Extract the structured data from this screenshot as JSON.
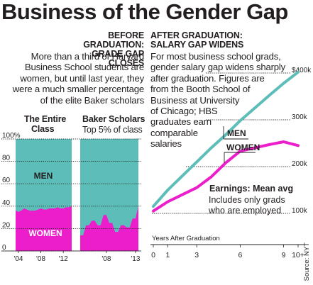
{
  "title": "Business of the Gender Gap",
  "left": {
    "head_line1": "BEFORE GRADUATION:",
    "head_line2": "GRADE GAP CLOSES",
    "text_lines": [
      "More than a third of Harvard",
      "Business School students are",
      "women, but until last year, they",
      "were a much smaller percentage",
      "of the elite Baker scholars"
    ],
    "panel1_title_line1": "The Entire",
    "panel1_title_line2": "Class",
    "panel2_title": "Baker Scholars",
    "panel2_sub": "Top 5% of class"
  },
  "right": {
    "head_line1": "AFTER GRADUATION:",
    "head_line2": "SALARY GAP WIDENS",
    "text_lines": [
      "For most business school grads,",
      "gender salary gap widens sharply",
      "after graduation. Figures are",
      "from the Booth School of",
      "Business at University",
      "of Chicago; HBS",
      "graduates earn",
      "comparable",
      "salaries"
    ],
    "earnings_title": "Earnings: Mean avg",
    "earnings_note": [
      "Includes only grads",
      "who are employed"
    ]
  },
  "source": "Source: NYT",
  "colors": {
    "men": "#5dbdb8",
    "women": "#ec1ecb",
    "text": "#231f20"
  },
  "chart_data": [
    {
      "type": "area",
      "title": "The Entire Class",
      "ylim": [
        0,
        100
      ],
      "y_ticks": [
        "0",
        "20",
        "40",
        "60",
        "80",
        "100%"
      ],
      "y_tick_values": [
        0,
        20,
        40,
        60,
        80,
        100
      ],
      "x_ticks": [
        "'04",
        "'08",
        "'12"
      ],
      "x_tick_years": [
        2004,
        2008,
        2012
      ],
      "x": [
        2003.5,
        2004,
        2004.5,
        2005,
        2005.5,
        2006,
        2006.5,
        2007,
        2007.5,
        2008,
        2008.5,
        2009,
        2009.5,
        2010,
        2010.5,
        2011,
        2011.5,
        2012,
        2012.5,
        2013,
        2013.5
      ],
      "series": [
        {
          "name": "WOMEN",
          "values": [
            36,
            35,
            36,
            38,
            37,
            36,
            36,
            36,
            37,
            38,
            37,
            37,
            38,
            38,
            38,
            39,
            38,
            38,
            39,
            39,
            40
          ]
        },
        {
          "name": "MEN",
          "stacked_to": 100
        }
      ]
    },
    {
      "type": "area",
      "title": "Baker Scholars",
      "subtitle": "Top 5% of class",
      "ylim": [
        0,
        100
      ],
      "x_ticks": [
        "'08",
        "'13"
      ],
      "x_tick_years": [
        2008,
        2013
      ],
      "x": [
        2003.5,
        2004,
        2004.5,
        2005,
        2005.5,
        2006,
        2006.5,
        2007,
        2007.5,
        2008,
        2008.5,
        2009,
        2009.5,
        2010,
        2010.5,
        2011,
        2011.5,
        2012,
        2012.5,
        2013,
        2013.5
      ],
      "series": [
        {
          "name": "WOMEN",
          "values": [
            14,
            14,
            23,
            23,
            27,
            27,
            23,
            23,
            32,
            32,
            25,
            25,
            17,
            17,
            23,
            23,
            21,
            21,
            29,
            29,
            40
          ]
        },
        {
          "name": "MEN",
          "stacked_to": 100
        }
      ]
    },
    {
      "type": "line",
      "title": "Earnings: Mean avg",
      "xlabel": "Years After Graduation",
      "x_ticks": [
        "0",
        "1",
        "3",
        "6",
        "9",
        "10+"
      ],
      "y_ticks": [
        "100k",
        "200k",
        "300k",
        "$400k"
      ],
      "y_tick_values": [
        100,
        200,
        300,
        400
      ],
      "ylim": [
        90,
        420
      ],
      "x": [
        0,
        1,
        2,
        3,
        4,
        5,
        6,
        7,
        8,
        9,
        10
      ],
      "series": [
        {
          "name": "MEN",
          "values": [
            115,
            150,
            180,
            210,
            240,
            268,
            298,
            325,
            352,
            378,
            402
          ]
        },
        {
          "name": "WOMEN",
          "values": [
            105,
            125,
            140,
            155,
            178,
            208,
            233,
            240,
            247,
            253,
            245
          ]
        }
      ]
    }
  ]
}
